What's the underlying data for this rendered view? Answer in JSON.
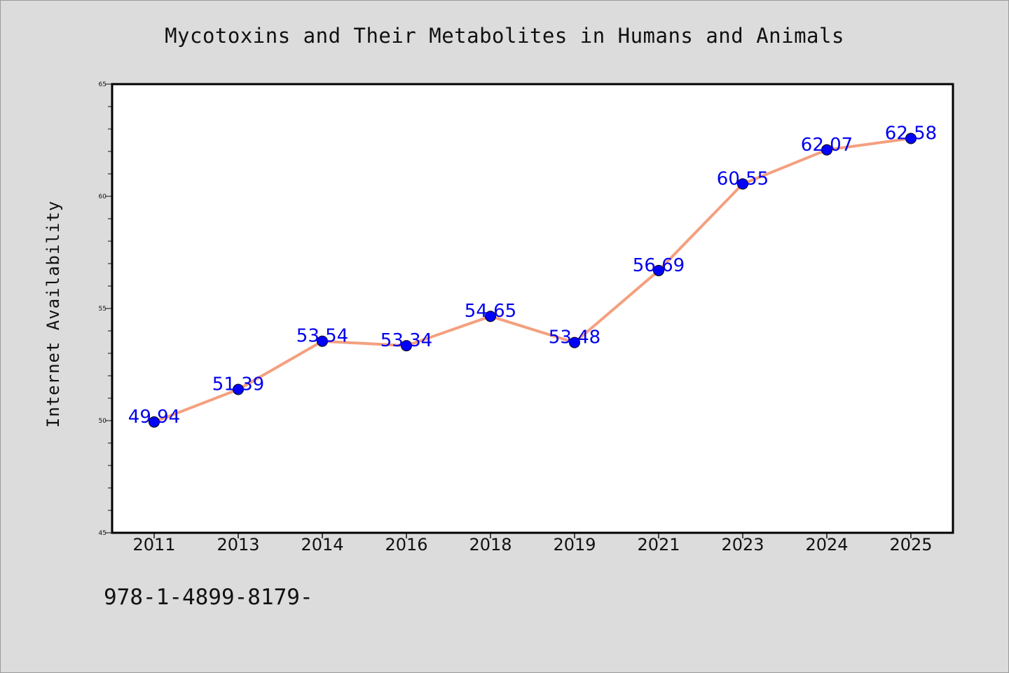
{
  "chart_data": {
    "type": "line",
    "title": "Mycotoxins and Their Metabolites in Humans and Animals",
    "xlabel": "",
    "ylabel": "Internet Availability",
    "categories": [
      "2011",
      "2013",
      "2014",
      "2016",
      "2018",
      "2019",
      "2021",
      "2023",
      "2024",
      "2025"
    ],
    "series": [
      {
        "values": [
          49.94,
          51.39,
          53.54,
          53.34,
          54.65,
          53.48,
          56.69,
          60.55,
          62.07,
          62.58
        ],
        "line_color": "#f4a07f",
        "marker_color": "#0000ff"
      }
    ],
    "data_labels": [
      "49.94",
      "51.39",
      "53.54",
      "53.34",
      "54.65",
      "53.48",
      "56.69",
      "60.55",
      "62.07",
      "62.58"
    ],
    "ylim": [
      45,
      65
    ],
    "y_ticks": [
      "45",
      "50",
      "55",
      "60",
      "65"
    ],
    "y_minor_step": 1,
    "grid": false,
    "label_color": "#0000ff",
    "plot_background": "#ffffff",
    "page_background": "#dcdcdc"
  },
  "footer": {
    "text": "978-1-4899-8179-"
  }
}
